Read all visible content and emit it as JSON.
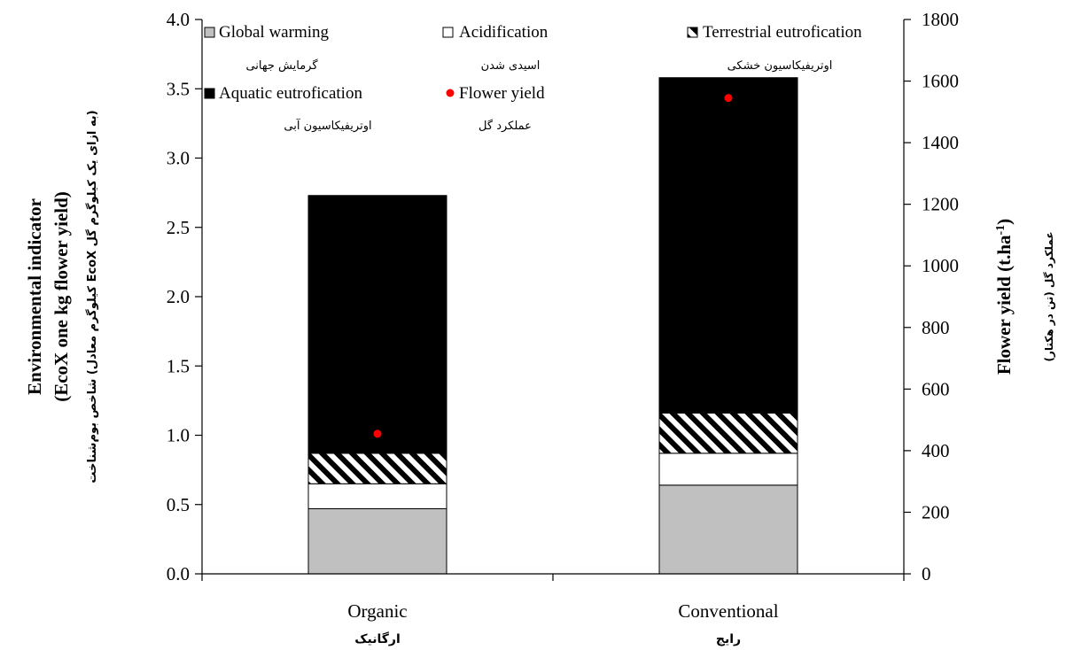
{
  "chart_data": {
    "type": "bar",
    "stacked": true,
    "categories": [
      "Organic",
      "Conventional"
    ],
    "categories_fa": [
      "ارگانیک",
      "رایج"
    ],
    "series": [
      {
        "name": "Global warming",
        "name_fa": "گرمایش جهانی",
        "values": [
          0.47,
          0.64
        ],
        "color": "#c0c0c0",
        "pattern": "solid"
      },
      {
        "name": "Acidification",
        "name_fa": "اسیدی شدن",
        "values": [
          0.18,
          0.23
        ],
        "color": "#ffffff",
        "pattern": "solid"
      },
      {
        "name": "Terrestrial eutrofication",
        "name_fa": "اوتریفیکاسیون خشکی",
        "values": [
          0.22,
          0.29
        ],
        "color": "#000000",
        "pattern": "diagonal-stripes"
      },
      {
        "name": "Aquatic eutrofication",
        "name_fa": "اوتریفیکاسیون آبی",
        "values": [
          1.86,
          2.42
        ],
        "color": "#000000",
        "pattern": "solid"
      }
    ],
    "secondary_series": {
      "name": "Flower yield",
      "name_fa": "عملکرد گل",
      "type": "scatter",
      "axis": "right",
      "values": [
        455,
        1545
      ],
      "color": "#ff0000"
    },
    "ylabel_line1": "Environmental indicator",
    "ylabel_line2": "(EcoX one kg flower yield)",
    "ylabel_fa_line1": "شاخص بوم‌شناخت (کیلوگرم معادل EcoX به ازای یک کیلوگرم گل)",
    "y2label": "Flower yield (t.ha",
    "y2label_sup": "-1",
    "y2label_close": ")",
    "y2label_fa": "عملکرد گل (تن در هکتار)",
    "ylim": [
      0,
      4.0
    ],
    "y_ticks": [
      "0.0",
      "0.5",
      "1.0",
      "1.5",
      "2.0",
      "2.5",
      "3.0",
      "3.5",
      "4.0"
    ],
    "y2lim": [
      0,
      1800
    ],
    "y2_ticks": [
      "0",
      "200",
      "400",
      "600",
      "800",
      "1000",
      "1200",
      "1400",
      "1600",
      "1800"
    ],
    "legend_position": "top",
    "grid": false
  }
}
